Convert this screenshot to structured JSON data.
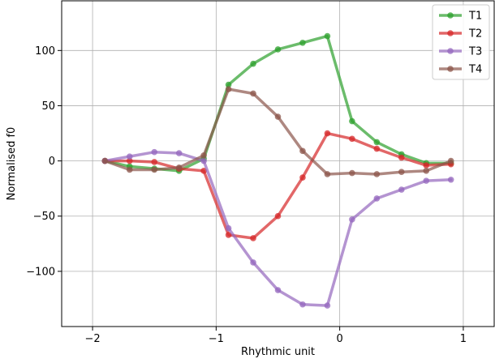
{
  "chart_data": {
    "type": "line",
    "xlabel": "Rhythmic unit",
    "ylabel": "Normalised f0",
    "xlim": [
      -2.25,
      1.25
    ],
    "ylim": [
      -150,
      145
    ],
    "xticks": [
      -2,
      -1,
      0,
      1
    ],
    "xtick_labels": [
      "−2",
      "−1",
      "0",
      "1"
    ],
    "yticks": [
      -100,
      -50,
      0,
      50,
      100
    ],
    "ytick_labels": [
      "−100",
      "−50",
      "0",
      "50",
      "100"
    ],
    "grid": true,
    "legend_position": "top-right",
    "x": [
      -1.9,
      -1.7,
      -1.5,
      -1.3,
      -1.1,
      -0.9,
      -0.7,
      -0.5,
      -0.3,
      -0.1,
      0.1,
      0.3,
      0.5,
      0.7,
      0.9
    ],
    "series": [
      {
        "name": "T1",
        "color": "#2ca02c",
        "values": [
          0,
          -5,
          -7,
          -9,
          2,
          69,
          88,
          101,
          107,
          113,
          36,
          17,
          6,
          -2,
          -2
        ]
      },
      {
        "name": "T2",
        "color": "#d62728",
        "values": [
          0,
          0,
          -1,
          -7,
          -9,
          -67,
          -70,
          -50,
          -15,
          25,
          20,
          11,
          3,
          -4,
          -3
        ]
      },
      {
        "name": "T3",
        "color": "#9467bd",
        "values": [
          0,
          4,
          8,
          7,
          0,
          -61,
          -92,
          -117,
          -130,
          -131,
          -53,
          -34,
          -26,
          -18,
          -17
        ]
      },
      {
        "name": "T4",
        "color": "#8c564b",
        "values": [
          0,
          -8,
          -8,
          -6,
          5,
          65,
          61,
          40,
          9,
          -12,
          -11,
          -12,
          -10,
          -9,
          0
        ]
      }
    ]
  }
}
